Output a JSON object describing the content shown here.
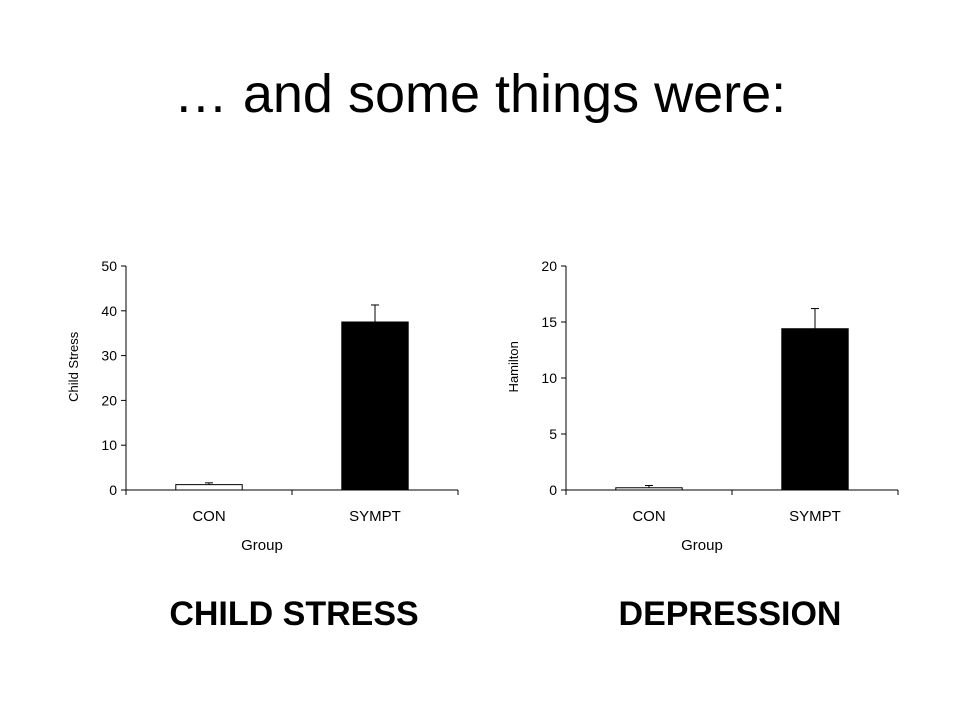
{
  "slide": {
    "title": "… and some things were:",
    "captions": [
      "CHILD STRESS",
      "DEPRESSION"
    ]
  },
  "chart_data": [
    {
      "type": "bar",
      "categories": [
        "CON",
        "SYMPT"
      ],
      "values": [
        1.2,
        37.5
      ],
      "error": [
        0.4,
        3.8
      ],
      "xlabel": "Group",
      "ylabel": "Child Stress",
      "ylim": [
        0,
        50
      ],
      "yticks": [
        0,
        10,
        20,
        30,
        40,
        50
      ],
      "bar_colors": [
        "#ffffff",
        "#000000"
      ],
      "grid": false
    },
    {
      "type": "bar",
      "categories": [
        "CON",
        "SYMPT"
      ],
      "values": [
        0.2,
        14.4
      ],
      "error": [
        0.2,
        1.8
      ],
      "xlabel": "Group",
      "ylabel": "Hamilton",
      "ylim": [
        0,
        20
      ],
      "yticks": [
        0,
        5,
        10,
        15,
        20
      ],
      "bar_colors": [
        "#ffffff",
        "#000000"
      ],
      "grid": false
    }
  ]
}
